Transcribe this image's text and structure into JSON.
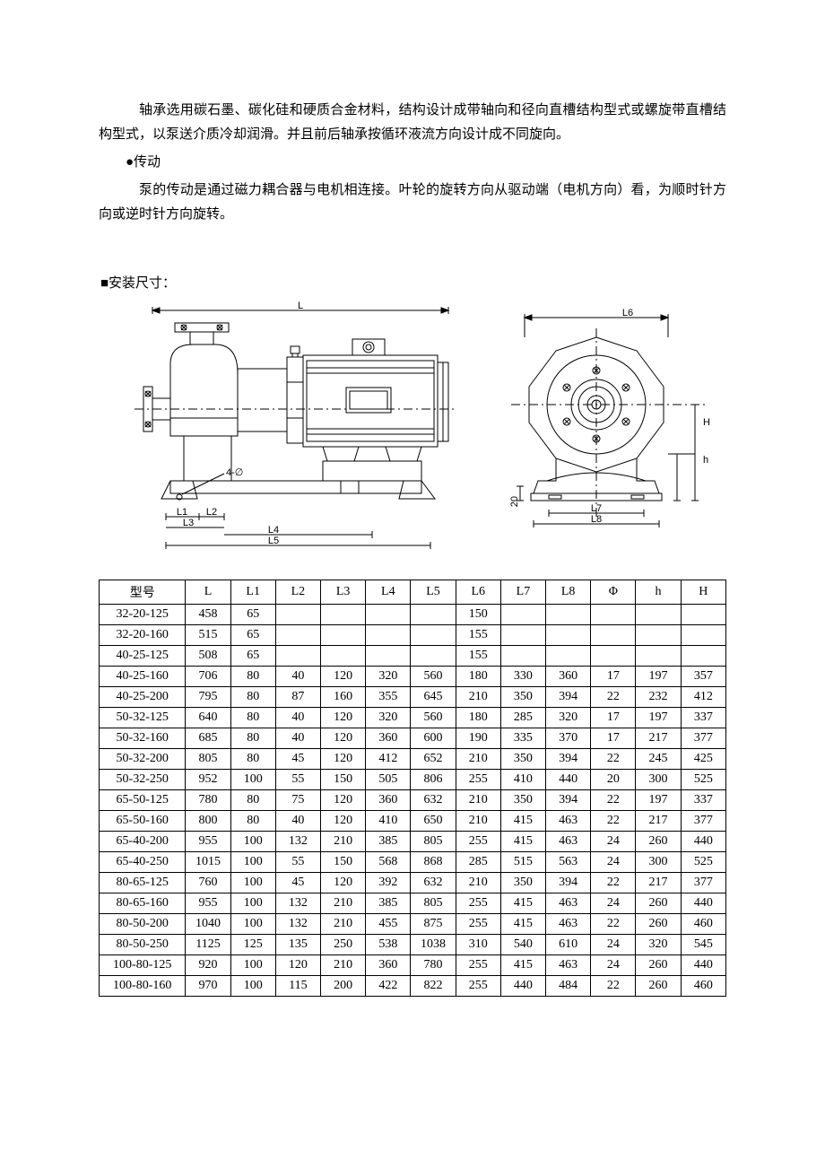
{
  "para1": "轴承选用碳石墨、碳化硅和硬质合金材料，结构设计成带轴向和径向直槽结构型式或螺旋带直槽结构型式，以泵送介质冷却润滑。并且前后轴承按循环液流方向设计成不同旋向。",
  "bullet1": "●传动",
  "para2": "泵的传动是通过磁力耦合器与电机相连接。叶轮的旋转方向从驱动端（电机方向）看，为顺时针方向或逆时针方向旋转。",
  "section": "■安装尺寸：",
  "diagram": {
    "labels": {
      "L": "L",
      "L1": "L1",
      "L2": "L2",
      "L3": "L3",
      "L4": "L4",
      "L5": "L5",
      "L6": "L6",
      "L7": "L7",
      "L8": "L8",
      "H": "H",
      "hh": "h",
      "fourPhi": "4-∅",
      "twenty": "20"
    },
    "stroke": "#000000",
    "fill_bg": "#ffffff"
  },
  "table": {
    "headers": [
      "型号",
      "L",
      "L1",
      "L2",
      "L3",
      "L4",
      "L5",
      "L6",
      "L7",
      "L8",
      "Φ",
      "h",
      "H"
    ],
    "rows": [
      [
        "32-20-125",
        "458",
        "65",
        "",
        "",
        "",
        "",
        "150",
        "",
        "",
        "",
        "",
        ""
      ],
      [
        "32-20-160",
        "515",
        "65",
        "",
        "",
        "",
        "",
        "155",
        "",
        "",
        "",
        "",
        ""
      ],
      [
        "40-25-125",
        "508",
        "65",
        "",
        "",
        "",
        "",
        "155",
        "",
        "",
        "",
        "",
        ""
      ],
      [
        "40-25-160",
        "706",
        "80",
        "40",
        "120",
        "320",
        "560",
        "180",
        "330",
        "360",
        "17",
        "197",
        "357"
      ],
      [
        "40-25-200",
        "795",
        "80",
        "87",
        "160",
        "355",
        "645",
        "210",
        "350",
        "394",
        "22",
        "232",
        "412"
      ],
      [
        "50-32-125",
        "640",
        "80",
        "40",
        "120",
        "320",
        "560",
        "180",
        "285",
        "320",
        "17",
        "197",
        "337"
      ],
      [
        "50-32-160",
        "685",
        "80",
        "40",
        "120",
        "360",
        "600",
        "190",
        "335",
        "370",
        "17",
        "217",
        "377"
      ],
      [
        "50-32-200",
        "805",
        "80",
        "45",
        "120",
        "412",
        "652",
        "210",
        "350",
        "394",
        "22",
        "245",
        "425"
      ],
      [
        "50-32-250",
        "952",
        "100",
        "55",
        "150",
        "505",
        "806",
        "255",
        "410",
        "440",
        "20",
        "300",
        "525"
      ],
      [
        "65-50-125",
        "780",
        "80",
        "75",
        "120",
        "360",
        "632",
        "210",
        "350",
        "394",
        "22",
        "197",
        "337"
      ],
      [
        "65-50-160",
        "800",
        "80",
        "40",
        "120",
        "410",
        "650",
        "210",
        "415",
        "463",
        "22",
        "217",
        "377"
      ],
      [
        "65-40-200",
        "955",
        "100",
        "132",
        "210",
        "385",
        "805",
        "255",
        "415",
        "463",
        "24",
        "260",
        "440"
      ],
      [
        "65-40-250",
        "1015",
        "100",
        "55",
        "150",
        "568",
        "868",
        "285",
        "515",
        "563",
        "24",
        "300",
        "525"
      ],
      [
        "80-65-125",
        "760",
        "100",
        "45",
        "120",
        "392",
        "632",
        "210",
        "350",
        "394",
        "22",
        "217",
        "377"
      ],
      [
        "80-65-160",
        "955",
        "100",
        "132",
        "210",
        "385",
        "805",
        "255",
        "415",
        "463",
        "24",
        "260",
        "440"
      ],
      [
        "80-50-200",
        "1040",
        "100",
        "132",
        "210",
        "455",
        "875",
        "255",
        "415",
        "463",
        "22",
        "260",
        "460"
      ],
      [
        "80-50-250",
        "1125",
        "125",
        "135",
        "250",
        "538",
        "1038",
        "310",
        "540",
        "610",
        "24",
        "320",
        "545"
      ],
      [
        "100-80-125",
        "920",
        "100",
        "120",
        "210",
        "360",
        "780",
        "255",
        "415",
        "463",
        "24",
        "260",
        "440"
      ],
      [
        "100-80-160",
        "970",
        "100",
        "115",
        "200",
        "422",
        "822",
        "255",
        "440",
        "484",
        "22",
        "260",
        "460"
      ]
    ]
  }
}
